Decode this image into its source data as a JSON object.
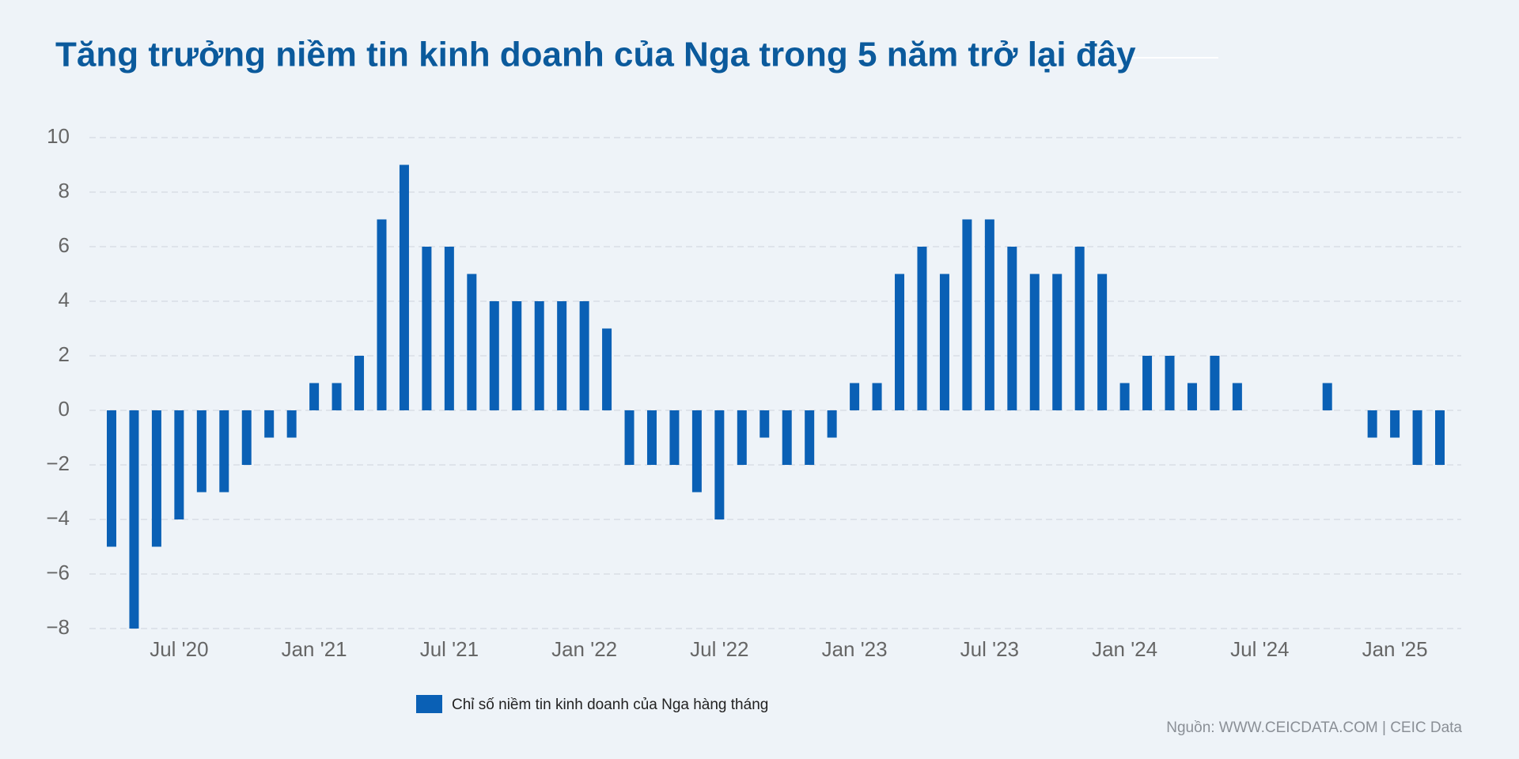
{
  "chart_data": {
    "type": "bar",
    "title": "Tăng trưởng niềm tin kinh doanh của Nga trong 5 năm trở lại đây",
    "categories": [
      null,
      null,
      null,
      "Jul '20",
      null,
      null,
      null,
      null,
      null,
      "Jan '21",
      null,
      null,
      null,
      null,
      null,
      "Jul '21",
      null,
      null,
      null,
      null,
      null,
      "Jan '22",
      null,
      null,
      null,
      null,
      null,
      "Jul '22",
      null,
      null,
      null,
      null,
      null,
      "Jan '23",
      null,
      null,
      null,
      null,
      null,
      "Jul '23",
      null,
      null,
      null,
      null,
      null,
      "Jan '24",
      null,
      null,
      null,
      null,
      null,
      "Jul '24",
      null,
      null,
      null,
      null,
      null,
      "Jan '25",
      null,
      null
    ],
    "series": [
      {
        "name": "Chỉ số niềm tin kinh doanh của Nga hàng tháng",
        "color": "#0a60b5",
        "values": [
          -5,
          -8,
          -5,
          -4,
          -3,
          -3,
          -2,
          -1,
          -1,
          1,
          1,
          2,
          7,
          9,
          6,
          6,
          5,
          4,
          4,
          4,
          4,
          4,
          3,
          -2,
          -2,
          -2,
          -3,
          -4,
          -2,
          -1,
          -2,
          -2,
          -1,
          1,
          1,
          5,
          6,
          5,
          7,
          7,
          6,
          5,
          5,
          6,
          5,
          1,
          2,
          2,
          1,
          2,
          1,
          0,
          0,
          0,
          1,
          0,
          -1,
          -1,
          -2,
          -2
        ]
      }
    ],
    "ylim": [
      -8,
      10
    ],
    "yticks": [
      {
        "value": -8,
        "label": "−8"
      },
      {
        "value": -6,
        "label": "−6"
      },
      {
        "value": -4,
        "label": "−4"
      },
      {
        "value": -2,
        "label": "−2"
      },
      0,
      2,
      4,
      6,
      8,
      10
    ],
    "grid": true,
    "source": "Nguồn: WWW.CEICDATA.COM | CEIC Data"
  }
}
